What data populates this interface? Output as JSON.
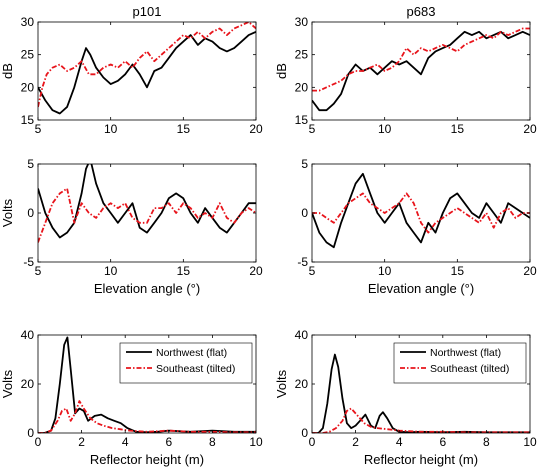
{
  "colors": {
    "northwest": "#000000",
    "southeast": "#e8141b",
    "axis": "#000000"
  },
  "chart_data": [
    {
      "type": "line",
      "title": "p101",
      "xlabel": "",
      "ylabel": "dB",
      "xlim": [
        5,
        20
      ],
      "ylim": [
        15,
        30
      ],
      "xticks": [
        "5",
        "10",
        "15",
        "20"
      ],
      "yticks": [
        "15",
        "20",
        "25",
        "30"
      ],
      "series": [
        {
          "style": "solid",
          "x": [
            5,
            5.5,
            6,
            6.5,
            7,
            7.5,
            8,
            8.3,
            8.6,
            9,
            9.5,
            10,
            10.5,
            11,
            11.5,
            12,
            12.5,
            13,
            13.5,
            14,
            14.5,
            15,
            15.5,
            16,
            16.5,
            17,
            17.5,
            18,
            18.5,
            19,
            19.5,
            20
          ],
          "y": [
            20,
            18,
            16.5,
            16,
            17,
            20,
            24,
            26,
            25,
            23,
            21.5,
            20.5,
            21,
            22,
            23.5,
            22,
            20,
            22.5,
            23,
            24.5,
            26,
            27,
            28,
            26.5,
            27.5,
            27,
            26,
            25.5,
            26,
            27,
            28,
            28.5
          ]
        },
        {
          "style": "dashed",
          "x": [
            5,
            5.3,
            5.6,
            6,
            6.5,
            7,
            7.5,
            8,
            8.5,
            9,
            9.5,
            10,
            10.5,
            11,
            11.5,
            12,
            12.5,
            13,
            13.5,
            14,
            14.5,
            15,
            15.5,
            16,
            16.5,
            17,
            17.5,
            18,
            18.5,
            19,
            19.5,
            20
          ],
          "y": [
            17,
            20,
            22,
            23,
            23.5,
            22.5,
            23,
            24,
            22,
            22,
            23,
            23.5,
            23,
            24,
            23,
            24.5,
            25.5,
            24,
            25,
            26,
            27,
            28,
            27.5,
            28.5,
            27.5,
            28.5,
            29,
            28,
            29,
            29.5,
            30,
            29
          ]
        }
      ]
    },
    {
      "type": "line",
      "title": "p683",
      "xlabel": "",
      "ylabel": "dB",
      "xlim": [
        5,
        20
      ],
      "ylim": [
        15,
        30
      ],
      "xticks": [
        "5",
        "10",
        "15",
        "20"
      ],
      "yticks": [
        "15",
        "20",
        "25",
        "30"
      ],
      "series": [
        {
          "style": "solid",
          "x": [
            5,
            5.5,
            6,
            6.5,
            7,
            7.5,
            8,
            8.5,
            9,
            9.5,
            10,
            10.5,
            11,
            11.5,
            12,
            12.5,
            13,
            13.5,
            14,
            14.5,
            15,
            15.5,
            16,
            16.5,
            17,
            17.5,
            18,
            18.5,
            19,
            19.5,
            20
          ],
          "y": [
            18,
            16.5,
            16.5,
            17.5,
            19,
            22,
            23.5,
            22.5,
            23,
            22,
            23,
            24,
            23.5,
            24,
            23,
            22,
            24.5,
            25.5,
            26,
            26.5,
            27.5,
            28.5,
            28,
            28.5,
            27.5,
            28,
            28.5,
            27.5,
            28,
            28.5,
            28
          ]
        },
        {
          "style": "dashed",
          "x": [
            5,
            5.5,
            6,
            6.5,
            7,
            7.5,
            8,
            8.5,
            9,
            9.5,
            10,
            10.5,
            11,
            11.5,
            12,
            12.5,
            13,
            13.5,
            14,
            14.5,
            15,
            15.5,
            16,
            16.5,
            17,
            17.5,
            18,
            18.5,
            19,
            19.5,
            20
          ],
          "y": [
            19.5,
            19.5,
            20,
            20.5,
            21,
            22,
            22.5,
            22.5,
            23,
            23.5,
            22.5,
            23,
            24,
            26,
            25,
            26,
            25.5,
            26,
            26.5,
            26,
            25.5,
            26.5,
            27,
            27.5,
            28,
            27.5,
            28.5,
            28,
            28.5,
            29,
            29
          ]
        }
      ]
    },
    {
      "type": "line",
      "title": "",
      "xlabel": "Elevation angle (°)",
      "ylabel": "Volts",
      "xlim": [
        5,
        20
      ],
      "ylim": [
        -5,
        5
      ],
      "xticks": [
        "5",
        "10",
        "15",
        "20"
      ],
      "yticks": [
        "-5",
        "0",
        "5"
      ],
      "series": [
        {
          "style": "solid",
          "x": [
            5,
            5.5,
            6,
            6.5,
            7,
            7.5,
            8,
            8.3,
            8.6,
            9,
            9.5,
            10,
            10.5,
            11,
            11.5,
            12,
            12.5,
            13,
            13.5,
            14,
            14.5,
            15,
            15.5,
            16,
            16.5,
            17,
            17.5,
            18,
            18.5,
            19,
            19.5,
            20
          ],
          "y": [
            2.5,
            0,
            -1.5,
            -2.5,
            -2,
            -1,
            2,
            4.5,
            5.5,
            3,
            1,
            0,
            -1,
            0,
            1,
            -1.5,
            -2,
            -1,
            0,
            1.5,
            2,
            1.5,
            0,
            -1,
            0.5,
            -0.5,
            -1.5,
            -2,
            -1,
            0,
            1,
            1
          ]
        },
        {
          "style": "dashed",
          "x": [
            5,
            5.5,
            6,
            6.5,
            7,
            7.5,
            8,
            8.5,
            9,
            9.5,
            10,
            10.5,
            11,
            11.5,
            12,
            12.5,
            13,
            13.5,
            14,
            14.5,
            15,
            15.5,
            16,
            16.5,
            17,
            17.5,
            18,
            18.5,
            19,
            19.5,
            20
          ],
          "y": [
            -3,
            -1,
            1,
            2,
            2.5,
            -1,
            1,
            0,
            -0.5,
            0.5,
            1,
            0.5,
            1,
            -0.5,
            -1,
            -1,
            0.5,
            0.5,
            1,
            0,
            1,
            0.5,
            -0.5,
            0,
            -0.5,
            1,
            -0.5,
            -1,
            0,
            0.5,
            0
          ]
        }
      ]
    },
    {
      "type": "line",
      "title": "",
      "xlabel": "Elevation angle (°)",
      "ylabel": "",
      "xlim": [
        5,
        20
      ],
      "ylim": [
        -5,
        5
      ],
      "xticks": [
        "5",
        "10",
        "15",
        "20"
      ],
      "yticks": [
        "-5",
        "0",
        "5"
      ],
      "series": [
        {
          "style": "solid",
          "x": [
            5,
            5.5,
            6,
            6.5,
            7,
            7.5,
            8,
            8.5,
            9,
            9.5,
            10,
            10.5,
            11,
            11.5,
            12,
            12.5,
            13,
            13.5,
            14,
            14.5,
            15,
            15.5,
            16,
            16.5,
            17,
            17.5,
            18,
            18.5,
            19,
            19.5,
            20
          ],
          "y": [
            0,
            -2,
            -3,
            -3.5,
            -1,
            1,
            3,
            4,
            2,
            0,
            -1,
            0,
            1,
            -1,
            -2,
            -3,
            -1,
            -2,
            0,
            1.5,
            2,
            1,
            0,
            -0.5,
            1,
            0,
            -1,
            1,
            0.5,
            0,
            -0.5
          ]
        },
        {
          "style": "dashed",
          "x": [
            5,
            5.5,
            6,
            6.5,
            7,
            7.5,
            8,
            8.5,
            9,
            9.5,
            10,
            10.5,
            11,
            11.5,
            12,
            12.5,
            13,
            13.5,
            14,
            14.5,
            15,
            15.5,
            16,
            16.5,
            17,
            17.5,
            18,
            18.5,
            19,
            19.5,
            20
          ],
          "y": [
            0,
            0,
            -0.5,
            -1,
            0,
            1,
            1.5,
            2,
            1,
            0.5,
            0,
            0.5,
            1,
            2,
            1,
            -1,
            -2,
            -1,
            -0.5,
            0,
            0.5,
            0,
            -0.5,
            -1,
            0,
            -1.5,
            0,
            0.5,
            -0.5,
            0,
            0
          ]
        }
      ]
    },
    {
      "type": "line",
      "title": "",
      "xlabel": "Reflector height (m)",
      "ylabel": "Volts",
      "xlim": [
        0,
        10
      ],
      "ylim": [
        0,
        40
      ],
      "xticks": [
        "0",
        "2",
        "4",
        "6",
        "8",
        "10"
      ],
      "yticks": [
        "0",
        "20",
        "40"
      ],
      "legend": [
        "Northwest (flat)",
        "Southeast (tilted)"
      ],
      "series": [
        {
          "style": "solid",
          "x": [
            0,
            0.3,
            0.6,
            0.8,
            1.0,
            1.2,
            1.35,
            1.5,
            1.7,
            1.9,
            2.1,
            2.3,
            2.6,
            2.9,
            3.2,
            3.5,
            3.8,
            4.1,
            4.5,
            5,
            5.5,
            6,
            7,
            8,
            9,
            10
          ],
          "y": [
            0,
            0,
            1,
            6,
            20,
            36,
            39,
            26,
            8,
            10,
            9,
            5,
            7,
            7.5,
            6,
            5,
            4,
            2,
            0.5,
            0.3,
            0.5,
            1,
            0.5,
            1,
            0.5,
            0.5
          ]
        },
        {
          "style": "dashed",
          "x": [
            0,
            0.3,
            0.6,
            0.9,
            1.1,
            1.3,
            1.5,
            1.7,
            1.9,
            2.1,
            2.4,
            2.7,
            3,
            3.4,
            3.8,
            4.2,
            5,
            6,
            7,
            8,
            9,
            10
          ],
          "y": [
            0,
            0,
            1,
            5,
            9,
            10,
            5,
            8,
            13,
            10,
            6,
            4,
            3,
            2,
            1.5,
            1,
            0.5,
            1,
            0.5,
            0.5,
            0.3,
            0.3
          ]
        }
      ]
    },
    {
      "type": "line",
      "title": "",
      "xlabel": "Reflector height (m)",
      "ylabel": "Volts",
      "xlim": [
        0,
        10
      ],
      "ylim": [
        0,
        40
      ],
      "xticks": [
        "0",
        "2",
        "4",
        "6",
        "8",
        "10"
      ],
      "yticks": [
        "0",
        "20",
        "40"
      ],
      "legend": [
        "Northwest (flat)",
        "Southeast (tilted)"
      ],
      "series": [
        {
          "style": "solid",
          "x": [
            0,
            0.3,
            0.5,
            0.7,
            0.9,
            1.05,
            1.2,
            1.4,
            1.6,
            1.8,
            2.0,
            2.2,
            2.45,
            2.7,
            2.9,
            3.1,
            3.25,
            3.45,
            3.7,
            4,
            4.5,
            5,
            6,
            7,
            8,
            9,
            10
          ],
          "y": [
            0,
            0,
            2,
            12,
            26,
            32,
            27,
            14,
            4,
            2,
            3,
            5,
            7.5,
            3,
            2,
            7,
            8.5,
            6,
            2,
            0.5,
            0.3,
            0.5,
            0.3,
            0.5,
            0.3,
            0.3,
            0.3
          ]
        },
        {
          "style": "dashed",
          "x": [
            0,
            0.5,
            0.8,
            1.1,
            1.4,
            1.6,
            1.8,
            2.1,
            2.4,
            2.7,
            3,
            3.5,
            4,
            5,
            6,
            7,
            8,
            9,
            10
          ],
          "y": [
            0,
            0,
            0.5,
            2,
            5,
            9,
            10,
            7,
            4,
            2.5,
            2,
            1.5,
            1,
            0.5,
            0.5,
            0.3,
            0.3,
            0.3,
            0.3
          ]
        }
      ]
    }
  ]
}
